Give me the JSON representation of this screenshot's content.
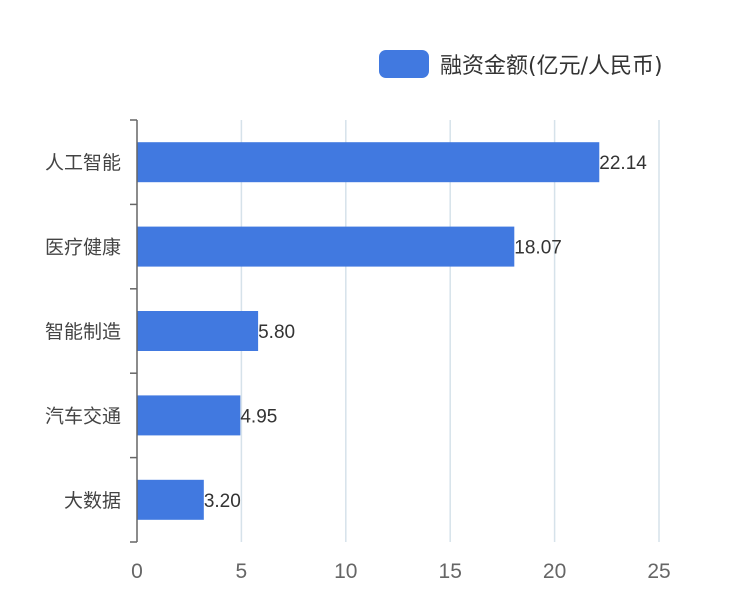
{
  "legend": {
    "label": "融资金额(亿元/人民币)"
  },
  "colors": {
    "bar": "#4179e0",
    "grid": "#d6e2ea",
    "axis": "#666666"
  },
  "chart_data": {
    "type": "bar",
    "orientation": "horizontal",
    "categories": [
      "人工智能",
      "医疗健康",
      "智能制造",
      "汽车交通",
      "大数据"
    ],
    "series": [
      {
        "name": "融资金额(亿元/人民币)",
        "values": [
          22.14,
          18.07,
          5.8,
          4.95,
          3.2
        ]
      }
    ],
    "value_labels": [
      "22.14",
      "18.07",
      "5.80",
      "4.95",
      "3.20"
    ],
    "x_ticks": [
      "0",
      "5",
      "10",
      "15",
      "20",
      "25"
    ],
    "xlim": [
      0,
      25
    ],
    "grid": true,
    "legend_position": "top-right"
  }
}
